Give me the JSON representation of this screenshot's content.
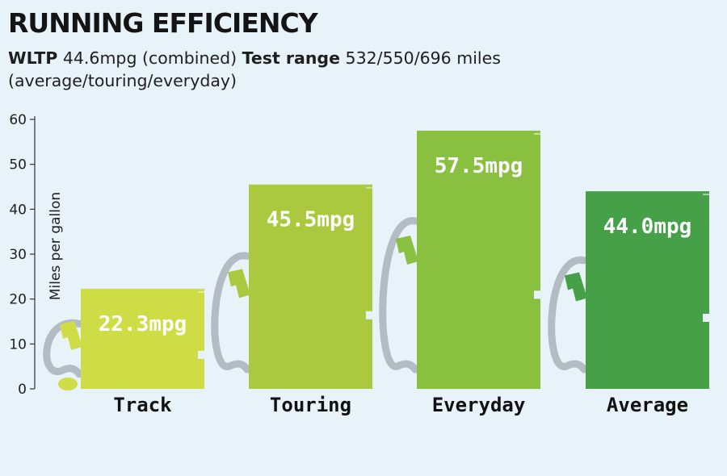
{
  "title": "RUNNING EFFICIENCY",
  "subtitle": {
    "wltp_label": "WLTP",
    "wltp_value": " 44.6mpg (combined) ",
    "range_label": "Test range",
    "range_value": " 532/550/696 miles (average/touring/everyday)"
  },
  "colors": {
    "background": "#e8f2f9",
    "hose": "#b3bcc2",
    "track": "#cedc45",
    "touring": "#abc93f",
    "everyday": "#89c03f",
    "average": "#45a047"
  },
  "chart_data": {
    "type": "bar",
    "title": "RUNNING EFFICIENCY",
    "categories": [
      "Track",
      "Touring",
      "Everyday",
      "Average"
    ],
    "values": [
      22.3,
      45.5,
      57.5,
      44.0
    ],
    "data_labels": [
      "22.3mpg",
      "45.5mpg",
      "57.5mpg",
      "44.0mpg"
    ],
    "ylabel": "Miles per gallon",
    "xlabel": "",
    "ylim": [
      0,
      60
    ],
    "yticks": [
      0,
      10,
      20,
      30,
      40,
      50,
      60
    ],
    "grid": false,
    "legend": "none"
  }
}
